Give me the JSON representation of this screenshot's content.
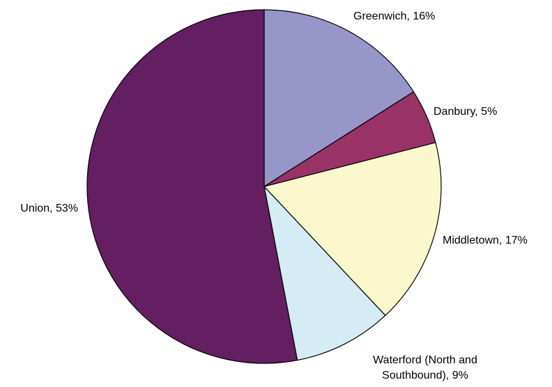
{
  "chart_data": {
    "type": "pie",
    "slices": [
      {
        "name": "Greenwich",
        "value": 16,
        "color": "#9696C8",
        "label_lines": [
          "Greenwich, 16%"
        ]
      },
      {
        "name": "Danbury",
        "value": 5,
        "color": "#993366",
        "label_lines": [
          "Danbury, 5%"
        ]
      },
      {
        "name": "Middletown",
        "value": 17,
        "color": "#FAF8CC",
        "label_lines": [
          "Middletown, 17%"
        ]
      },
      {
        "name": "Waterford (North and Southbound)",
        "value": 9,
        "color": "#D4ECF3",
        "label_lines": [
          "Waterford (North and",
          "Southbound), 9%"
        ]
      },
      {
        "name": "Union",
        "value": 53,
        "color": "#631F62",
        "label_lines": [
          "Union, 53%"
        ]
      }
    ],
    "start_angle": "12 o'clock",
    "direction": "clockwise",
    "legend": "none"
  }
}
